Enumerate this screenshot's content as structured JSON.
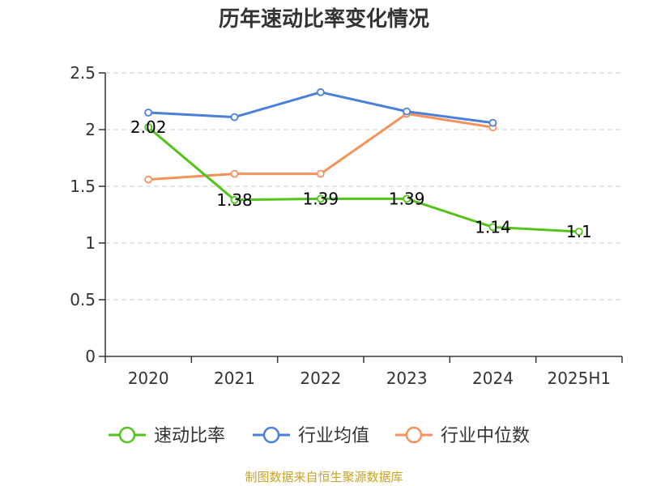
{
  "chart_data": {
    "type": "line",
    "title": "历年速动比率变化情况",
    "categories": [
      "2020",
      "2021",
      "2022",
      "2023",
      "2024",
      "2025H1"
    ],
    "ylim": [
      0,
      2.5
    ],
    "yticks": [
      "0",
      "0.5",
      "1",
      "1.5",
      "2",
      "2.5"
    ],
    "grid": true,
    "legend_position": "bottom",
    "series": [
      {
        "name": "速动比率",
        "color": "#52c41a",
        "values": [
          2.02,
          1.38,
          1.39,
          1.39,
          1.14,
          1.1
        ],
        "labels": [
          "2.02",
          "1.38",
          "1.39",
          "1.39",
          "1.14",
          "1.1"
        ]
      },
      {
        "name": "行业均值",
        "color": "#4a7fdb",
        "values": [
          2.15,
          2.11,
          2.33,
          2.16,
          2.06,
          null
        ]
      },
      {
        "name": "行业中位数",
        "color": "#f5915a",
        "values": [
          1.56,
          1.61,
          1.61,
          2.14,
          2.02,
          null
        ]
      }
    ]
  },
  "source_text": "制图数据来自恒生聚源数据库",
  "source_color": "#c9a227"
}
